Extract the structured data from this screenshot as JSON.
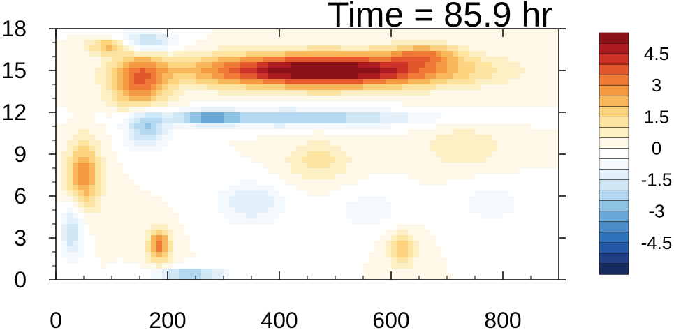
{
  "chart_data": {
    "type": "heatmap",
    "title": "Time = 85.9 hr",
    "xlabel": "",
    "ylabel": "",
    "xlim": [
      0,
      900
    ],
    "ylim": [
      0,
      18
    ],
    "x_ticks": [
      0,
      200,
      400,
      600,
      800
    ],
    "y_ticks": [
      0,
      3,
      6,
      9,
      12,
      15,
      18
    ],
    "colorbar": {
      "levels": [
        -5.5,
        -5,
        -4.5,
        -4,
        -3.5,
        -3,
        -2.5,
        -2,
        -1.5,
        -1,
        -0.5,
        0,
        0.5,
        1,
        1.5,
        2,
        2.5,
        3,
        3.5,
        4,
        4.5,
        5,
        5.5
      ],
      "tick_labels": [
        "-4.5",
        "-3",
        "-1.5",
        "0",
        "1.5",
        "3",
        "4.5"
      ],
      "colors": [
        "#172b5e",
        "#1f3e86",
        "#2358a7",
        "#2f74ba",
        "#4a8dc8",
        "#6aa8d8",
        "#8fc3e6",
        "#b3d8ef",
        "#cfe6f5",
        "#e4f1fa",
        "#f4f9fd",
        "#ffffff",
        "#fdf8e8",
        "#fdf0c4",
        "#fde5a1",
        "#fbd27d",
        "#f8b75a",
        "#f49a43",
        "#ee7a35",
        "#e2572b",
        "#cc3225",
        "#ab1a1e",
        "#8a1117"
      ]
    },
    "features": [
      {
        "x": 480,
        "y": 15.0,
        "sx": 230,
        "sy": 1.2,
        "value": 6.0
      },
      {
        "x": 660,
        "y": 16.2,
        "sx": 60,
        "sy": 0.7,
        "value": 2.2
      },
      {
        "x": 420,
        "y": 11.6,
        "sx": 220,
        "sy": 0.6,
        "value": -2.8
      },
      {
        "x": 270,
        "y": 11.6,
        "sx": 50,
        "sy": 0.5,
        "value": -2.0
      },
      {
        "x": 150,
        "y": 14.0,
        "sx": 50,
        "sy": 2.5,
        "value": 3.2
      },
      {
        "x": 100,
        "y": 16.8,
        "sx": 40,
        "sy": 0.6,
        "value": 3.0
      },
      {
        "x": 50,
        "y": 7.5,
        "sx": 30,
        "sy": 2.5,
        "value": 2.8
      },
      {
        "x": 160,
        "y": 11.0,
        "sx": 40,
        "sy": 1.5,
        "value": -3.0
      },
      {
        "x": 185,
        "y": 2.5,
        "sx": 20,
        "sy": 1.2,
        "value": 3.2
      },
      {
        "x": 240,
        "y": 0.4,
        "sx": 60,
        "sy": 0.4,
        "value": -3.0
      },
      {
        "x": 350,
        "y": 5.5,
        "sx": 60,
        "sy": 1.5,
        "value": -1.5
      },
      {
        "x": 470,
        "y": 8.5,
        "sx": 60,
        "sy": 1.5,
        "value": 1.2
      },
      {
        "x": 620,
        "y": 2.2,
        "sx": 25,
        "sy": 1.2,
        "value": 2.0
      },
      {
        "x": 730,
        "y": 9.5,
        "sx": 70,
        "sy": 1.5,
        "value": 1.0
      },
      {
        "x": 780,
        "y": 5.5,
        "sx": 60,
        "sy": 1.5,
        "value": -0.8
      },
      {
        "x": 560,
        "y": 5.0,
        "sx": 60,
        "sy": 1.5,
        "value": -0.8
      },
      {
        "x": 150,
        "y": 17.0,
        "sx": 60,
        "sy": 0.8,
        "value": -3.0
      },
      {
        "x": 30,
        "y": 3.5,
        "sx": 20,
        "sy": 2.0,
        "value": -2.0
      }
    ]
  }
}
